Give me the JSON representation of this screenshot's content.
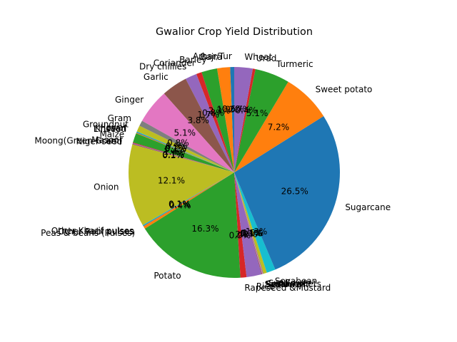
{
  "chart_data": {
    "type": "pie",
    "title": "Gwalior Crop Yield Distribution",
    "start_angle_deg": 90,
    "direction": "counterclockwise",
    "slices": [
      {
        "label": "Arhar/Tur",
        "value": 0.6,
        "pct_label": "0.6%",
        "color": "#1f77b4"
      },
      {
        "label": "Bajra",
        "value": 1.9,
        "pct_label": "1.9%",
        "color": "#ff7f0e"
      },
      {
        "label": "Barley",
        "value": 2.3,
        "pct_label": "2.3%",
        "color": "#2ca02c"
      },
      {
        "label": "Coriander",
        "value": 0.8,
        "pct_label": "0.8%",
        "color": "#d62728"
      },
      {
        "label": "Dry chillies",
        "value": 1.7,
        "pct_label": "1.7%",
        "color": "#9467bd"
      },
      {
        "label": "Garlic",
        "value": 3.8,
        "pct_label": "3.8%",
        "color": "#8c564b"
      },
      {
        "label": "Ginger",
        "value": 5.1,
        "pct_label": "5.1%",
        "color": "#e377c2"
      },
      {
        "label": "Gram",
        "value": 0.8,
        "pct_label": "0.8%",
        "color": "#7f7f7f"
      },
      {
        "label": "Groundnut",
        "value": 0.9,
        "pct_label": "0.9%",
        "color": "#bcbd22"
      },
      {
        "label": "Jowar",
        "value": 0.1,
        "pct_label": "0.1%",
        "color": "#17becf"
      },
      {
        "label": "Khesari",
        "value": 0.1,
        "pct_label": "0.1%",
        "color": "#1f77b4"
      },
      {
        "label": "Linseed",
        "value": 0.1,
        "pct_label": "0.1%",
        "color": "#ff7f0e"
      },
      {
        "label": "Maize",
        "value": 1.4,
        "pct_label": "1.4%",
        "color": "#2ca02c"
      },
      {
        "label": "Masoor",
        "value": 0.1,
        "pct_label": "0.1%",
        "color": "#d62728"
      },
      {
        "label": "Moong(Green Gram)",
        "value": 0.1,
        "pct_label": "0.1%",
        "color": "#9467bd"
      },
      {
        "label": "Niger seed",
        "value": 0.1,
        "pct_label": "0.1%",
        "color": "#8c564b"
      },
      {
        "label": "Onion",
        "value": 12.1,
        "pct_label": "12.1%",
        "color": "#bcbd22"
      },
      {
        "label": "Other Kharif pulses",
        "value": 0.1,
        "pct_label": "0.1%",
        "color": "#17becf"
      },
      {
        "label": "Other Rabi pulses",
        "value": 0.1,
        "pct_label": "0.1%",
        "color": "#1f77b4"
      },
      {
        "label": "Peas & beans (Pulses)",
        "value": 0.4,
        "pct_label": "0.4%",
        "color": "#ff7f0e"
      },
      {
        "label": "Potato",
        "value": 16.3,
        "pct_label": "16.3%",
        "color": "#2ca02c"
      },
      {
        "label": "Rapeseed &Mustard",
        "value": 0.9,
        "pct_label": "0.9%",
        "color": "#d62728"
      },
      {
        "label": "Rice",
        "value": 2.2,
        "pct_label": "2.2%",
        "color": "#9467bd"
      },
      {
        "label": "Safflower",
        "value": 0.1,
        "pct_label": "0.1%",
        "color": "#8c564b"
      },
      {
        "label": "Sesamum",
        "value": 0.1,
        "pct_label": "0.1%",
        "color": "#e377c2"
      },
      {
        "label": "Small millets",
        "value": 0.1,
        "pct_label": "0.1%",
        "color": "#7f7f7f"
      },
      {
        "label": "Sunflower",
        "value": 0.5,
        "pct_label": "0.5%",
        "color": "#bcbd22"
      },
      {
        "label": "Soyabean",
        "value": 1.3,
        "pct_label": "1.3%",
        "color": "#17becf"
      },
      {
        "label": "Sugarcane",
        "value": 26.5,
        "pct_label": "26.5%",
        "color": "#1f77b4"
      },
      {
        "label": "Sweet potato",
        "value": 7.2,
        "pct_label": "7.2%",
        "color": "#ff7f0e"
      },
      {
        "label": "Turmeric",
        "value": 5.1,
        "pct_label": "5.1%",
        "color": "#2ca02c"
      },
      {
        "label": "Urad",
        "value": 0.4,
        "pct_label": "0.4%",
        "color": "#d62728"
      },
      {
        "label": "Wheat",
        "value": 2.7,
        "pct_label": "2.7%",
        "color": "#9467bd"
      }
    ]
  }
}
